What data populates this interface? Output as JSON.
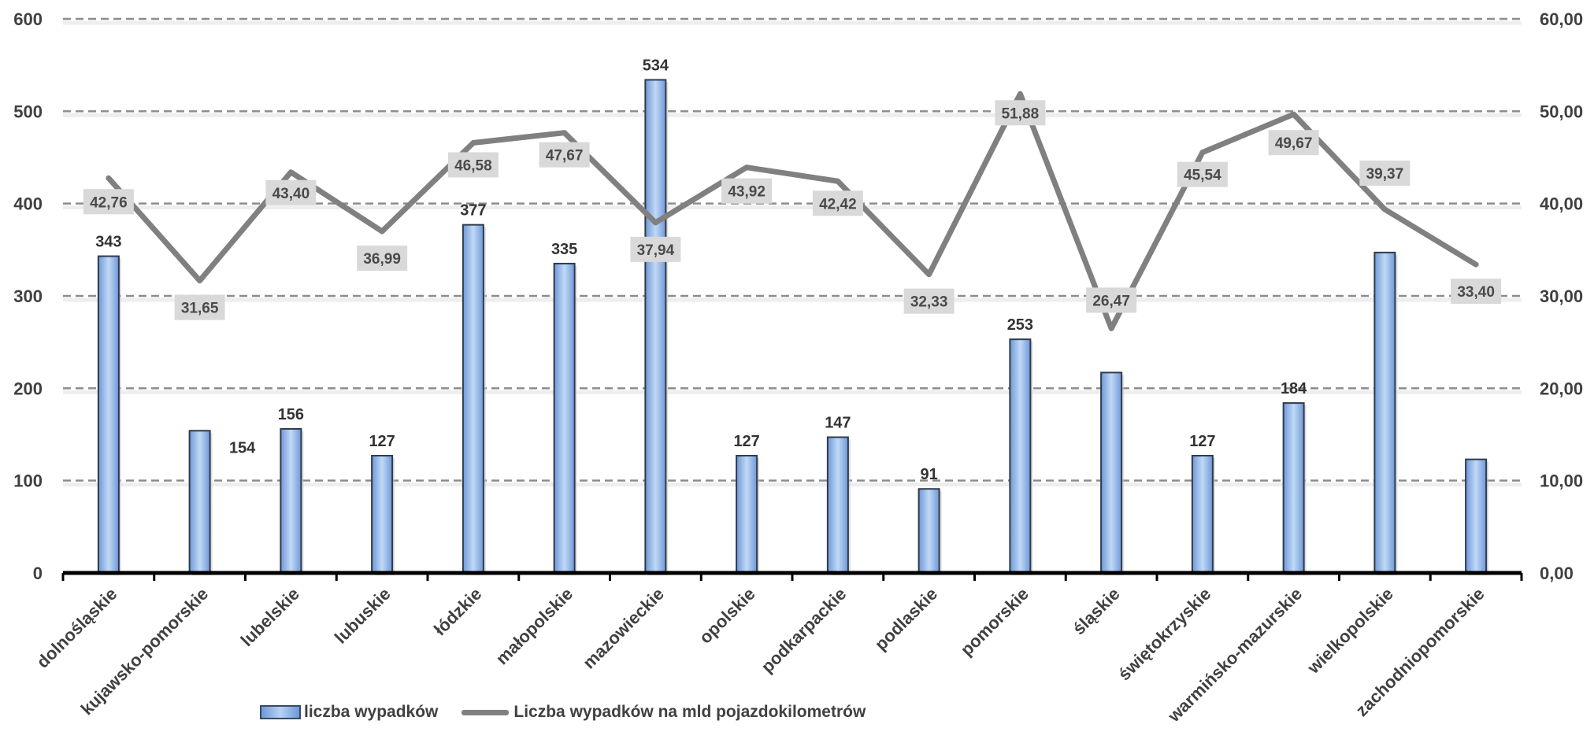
{
  "chart_data": {
    "type": "bar",
    "categories": [
      "dolnośląskie",
      "kujawsko-pomorskie",
      "lubelskie",
      "lubuskie",
      "łódzkie",
      "małopolskie",
      "mazowieckie",
      "opolskie",
      "podkarpackie",
      "podlaskie",
      "pomorskie",
      "śląskie",
      "świętokrzyskie",
      "warmińsko-mazurskie",
      "wielkopolskie",
      "zachodniopomorskie"
    ],
    "series": [
      {
        "name": "liczba wypadków",
        "type": "bar",
        "axis": "left",
        "values": [
          343,
          154,
          156,
          127,
          377,
          335,
          534,
          127,
          147,
          91,
          253,
          217,
          127,
          184,
          347,
          123
        ],
        "labels": [
          "343",
          "154",
          "156",
          "127",
          "377",
          "335",
          "534",
          "127",
          "147",
          "91",
          "253",
          "",
          "127",
          "184",
          "",
          ""
        ],
        "color": "#9dc0ee"
      },
      {
        "name": "Liczba wypadków na mld pojazdokilometrów",
        "type": "line",
        "axis": "right",
        "values": [
          42.76,
          31.65,
          43.4,
          36.99,
          46.58,
          47.67,
          37.94,
          43.92,
          42.42,
          32.33,
          51.88,
          26.47,
          45.54,
          49.67,
          39.37,
          33.4
        ],
        "labels": [
          "42,76",
          "31,65",
          "43,40",
          "36,99",
          "46,58",
          "47,67",
          "37,94",
          "43,92",
          "42,42",
          "32,33",
          "51,88",
          "26,47",
          "45,54",
          "49,67",
          "39,37",
          "33,40"
        ],
        "color": "#808080"
      }
    ],
    "y_left": {
      "min": 0,
      "max": 600,
      "ticks": [
        "0",
        "100",
        "200",
        "300",
        "400",
        "500",
        "600"
      ]
    },
    "y_right": {
      "min": 0,
      "max": 60,
      "ticks": [
        "0,00",
        "10,00",
        "20,00",
        "30,00",
        "40,00",
        "50,00",
        "60,00"
      ]
    },
    "grid": true,
    "legend_position": "bottom"
  },
  "legend": {
    "bar_label": "liczba wypadków",
    "line_label": "Liczba wypadków na mld pojazdokilometrów"
  }
}
